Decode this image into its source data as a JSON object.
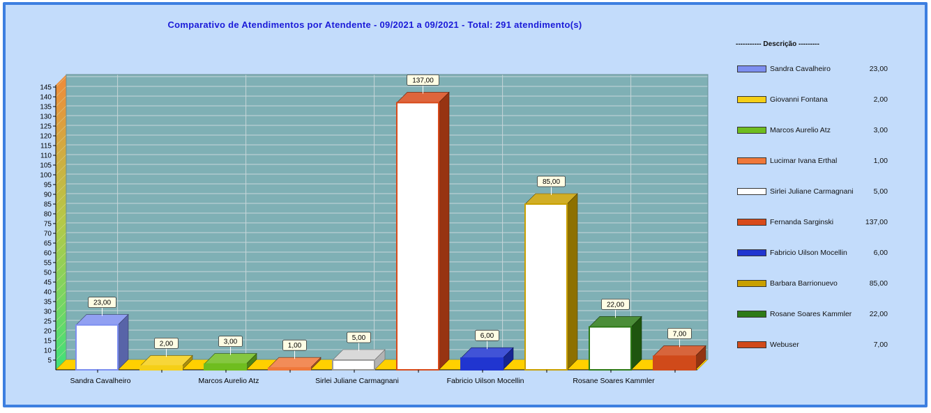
{
  "chart_data": {
    "type": "bar",
    "title": "Comparativo de Atendimentos por Atendente - 09/2021 a 09/2021 - Total: 291 atendimento(s)",
    "categories": [
      "Sandra Cavalheiro",
      "Giovanni Fontana",
      "Marcos Aurelio Atz",
      "Lucimar Ivana Erthal",
      "Sirlei Juliane Carmagnani",
      "Fernanda Sarginski",
      "Fabricio Uilson Mocellin",
      "Barbara Barrionuevo",
      "Rosane Soares Kammler",
      "Webuser"
    ],
    "x_tick_labels": [
      "Sandra Cavalheiro",
      "",
      "Marcos Aurelio Atz",
      "",
      "Sirlei Juliane Carmagnani",
      "",
      "Fabricio Uilson Mocellin",
      "",
      "Rosane Soares Kammler",
      ""
    ],
    "values": [
      23,
      2,
      3,
      1,
      5,
      137,
      6,
      85,
      22,
      7
    ],
    "value_labels": [
      "23,00",
      "2,00",
      "3,00",
      "1,00",
      "5,00",
      "137,00",
      "6,00",
      "85,00",
      "22,00",
      "7,00"
    ],
    "colors": [
      "#7d8ff0",
      "#f5cf16",
      "#6fbd1f",
      "#f0783a",
      "#ffffff",
      "#d84a1a",
      "#2035d0",
      "#c9a000",
      "#2d7a16",
      "#d04a1a"
    ],
    "front_colors": [
      "#ffffff",
      "#f5cf16",
      "#6fbd1f",
      "#f0783a",
      "#ffffff",
      "#ffffff",
      "#2035d0",
      "#ffffff",
      "#ffffff",
      "#d04a1a"
    ],
    "ylim": [
      0,
      145
    ],
    "yticks": [
      5,
      10,
      15,
      20,
      25,
      30,
      35,
      40,
      45,
      50,
      55,
      60,
      65,
      70,
      75,
      80,
      85,
      90,
      95,
      100,
      105,
      110,
      115,
      120,
      125,
      130,
      135,
      140,
      145
    ],
    "grid": true,
    "legend_position": "right",
    "xlabel": "",
    "ylabel": ""
  },
  "legend": {
    "title": "----------- Descrição ---------",
    "items": [
      {
        "label": "Sandra Cavalheiro",
        "value": "23,00"
      },
      {
        "label": "Giovanni Fontana",
        "value": "2,00"
      },
      {
        "label": "Marcos Aurelio Atz",
        "value": "3,00"
      },
      {
        "label": "Lucimar Ivana Erthal",
        "value": "1,00"
      },
      {
        "label": "Sirlei Juliane Carmagnani",
        "value": "5,00"
      },
      {
        "label": "Fernanda Sarginski",
        "value": "137,00"
      },
      {
        "label": "Fabricio Uilson Mocellin",
        "value": "6,00"
      },
      {
        "label": "Barbara Barrionuevo",
        "value": "85,00"
      },
      {
        "label": "Rosane Soares Kammler",
        "value": "22,00"
      },
      {
        "label": "Webuser",
        "value": "7,00"
      }
    ]
  }
}
